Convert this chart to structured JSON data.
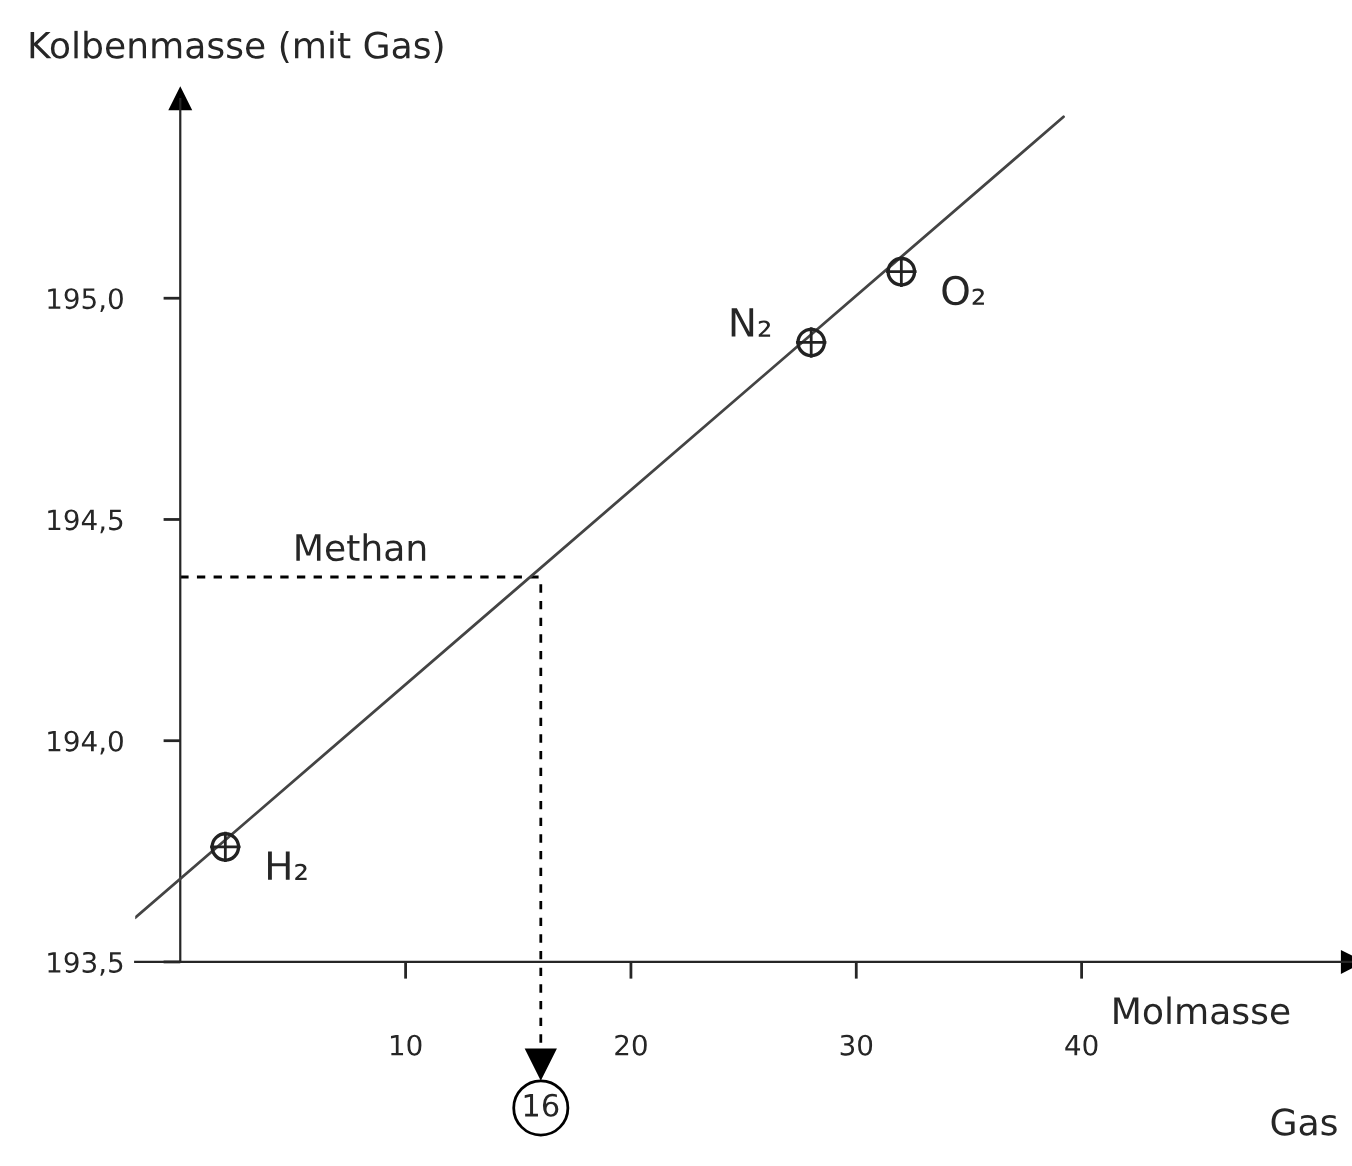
{
  "chart_data": {
    "type": "scatter",
    "xlabel": "Molmasse",
    "ylabel": "Kolbenmasse (mit Gas)",
    "grid": false,
    "series": [
      {
        "marker": "circle",
        "color": "#222222",
        "x": [
          2,
          28,
          32
        ],
        "values": [
          193.76,
          194.9,
          195.06
        ]
      },
      {
        "type": "line",
        "marker": "none",
        "color": "#444444",
        "x": [
          -2,
          39.2
        ],
        "values": [
          193.6,
          195.41
        ]
      }
    ],
    "xlim": [
      -2,
      52
    ],
    "ylim": [
      193.5,
      195.45
    ],
    "xticks": [
      10,
      20,
      30,
      40
    ],
    "yticks": [
      {
        "value": 193.5,
        "label": "193,5"
      },
      {
        "value": 194.0,
        "label": "194,0"
      },
      {
        "value": 194.5,
        "label": "194,5"
      },
      {
        "value": 195.0,
        "label": "195,0"
      }
    ],
    "ref_lines": [
      {
        "axis": "y",
        "value": 194.37,
        "label": "Methan",
        "line_style": "dashed",
        "color": "#000000"
      },
      {
        "axis": "x",
        "value": 16,
        "label": "16",
        "line_style": "dashed",
        "color": "#000000"
      }
    ],
    "annotations": [
      {
        "text": "H₂",
        "x": 2,
        "y": 193.76
      },
      {
        "text": "N₂",
        "x": 28,
        "y": 194.9
      },
      {
        "text": "O₂",
        "x": 32,
        "y": 195.06
      },
      "Gas"
    ]
  }
}
